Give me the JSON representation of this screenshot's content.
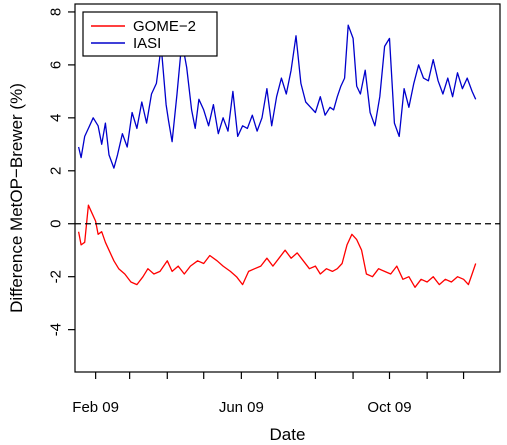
{
  "chart_data": {
    "type": "line",
    "xlabel": "Date",
    "ylabel": "Difference MetOP−Brewer (%)",
    "xlim": [
      "2009-01-15",
      "2009-12-31"
    ],
    "ylim": [
      -5.6,
      8.3
    ],
    "y_ticks": [
      -4,
      -2,
      0,
      2,
      4,
      6,
      8
    ],
    "y_tick_labels": [
      "-4",
      "-2",
      "0",
      "2",
      "4",
      "6",
      "8"
    ],
    "x_ticks": [
      "2009-01-01",
      "2009-02-01",
      "2009-03-01",
      "2009-04-01",
      "2009-05-01",
      "2009-06-01",
      "2009-07-01",
      "2009-08-01",
      "2009-09-01",
      "2009-10-01",
      "2009-11-01",
      "2009-12-01"
    ],
    "x_tick_labels": [
      {
        "date": "2009-02-01",
        "label": "Feb 09"
      },
      {
        "date": "2009-06-01",
        "label": "Jun 09"
      },
      {
        "date": "2009-10-01",
        "label": "Oct 09"
      }
    ],
    "reference_line": {
      "y": 0,
      "style": "dashed",
      "color": "#000000"
    },
    "legend": {
      "position": "top-left"
    },
    "grid": false,
    "series": [
      {
        "name": "GOME−2",
        "color": "#ff0000",
        "x": [
          "2009-01-18",
          "2009-01-20",
          "2009-01-23",
          "2009-01-26",
          "2009-01-29",
          "2009-02-01",
          "2009-02-03",
          "2009-02-06",
          "2009-02-09",
          "2009-02-12",
          "2009-02-16",
          "2009-02-20",
          "2009-02-25",
          "2009-03-02",
          "2009-03-07",
          "2009-03-12",
          "2009-03-16",
          "2009-03-21",
          "2009-03-26",
          "2009-04-01",
          "2009-04-05",
          "2009-04-10",
          "2009-04-15",
          "2009-04-20",
          "2009-04-26",
          "2009-05-01",
          "2009-05-06",
          "2009-05-12",
          "2009-05-17",
          "2009-05-23",
          "2009-05-28",
          "2009-06-02",
          "2009-06-07",
          "2009-06-12",
          "2009-06-17",
          "2009-06-22",
          "2009-06-27",
          "2009-07-02",
          "2009-07-07",
          "2009-07-12",
          "2009-07-17",
          "2009-07-22",
          "2009-07-27",
          "2009-08-01",
          "2009-08-05",
          "2009-08-10",
          "2009-08-15",
          "2009-08-19",
          "2009-08-23",
          "2009-08-27",
          "2009-08-31",
          "2009-09-04",
          "2009-09-08",
          "2009-09-12",
          "2009-09-17",
          "2009-09-22",
          "2009-09-27",
          "2009-10-02",
          "2009-10-07",
          "2009-10-12",
          "2009-10-17",
          "2009-10-22",
          "2009-10-27",
          "2009-11-01",
          "2009-11-06",
          "2009-11-11",
          "2009-11-16",
          "2009-11-21",
          "2009-11-26",
          "2009-12-01",
          "2009-12-05",
          "2009-12-08",
          "2009-12-11"
        ],
        "y": [
          -0.3,
          -0.8,
          -0.7,
          0.7,
          0.4,
          0.1,
          -0.4,
          -0.3,
          -0.7,
          -1.0,
          -1.4,
          -1.7,
          -1.9,
          -2.2,
          -2.3,
          -2.0,
          -1.7,
          -1.9,
          -1.8,
          -1.4,
          -1.8,
          -1.6,
          -1.9,
          -1.6,
          -1.4,
          -1.5,
          -1.2,
          -1.4,
          -1.6,
          -1.8,
          -2.0,
          -2.3,
          -1.8,
          -1.7,
          -1.6,
          -1.3,
          -1.6,
          -1.3,
          -1.0,
          -1.3,
          -1.1,
          -1.4,
          -1.7,
          -1.6,
          -1.9,
          -1.7,
          -1.8,
          -1.7,
          -1.5,
          -0.8,
          -0.4,
          -0.6,
          -1.0,
          -1.9,
          -2.0,
          -1.7,
          -1.8,
          -1.9,
          -1.6,
          -2.1,
          -2.0,
          -2.4,
          -2.1,
          -2.2,
          -2.0,
          -2.3,
          -2.1,
          -2.2,
          -2.0,
          -2.1,
          -2.3,
          -1.9,
          -1.5
        ]
      },
      {
        "name": "IASI",
        "color": "#0000cc",
        "x": [
          "2009-01-18",
          "2009-01-20",
          "2009-01-23",
          "2009-01-26",
          "2009-01-30",
          "2009-02-03",
          "2009-02-06",
          "2009-02-09",
          "2009-02-12",
          "2009-02-16",
          "2009-02-19",
          "2009-02-23",
          "2009-02-27",
          "2009-03-03",
          "2009-03-07",
          "2009-03-11",
          "2009-03-15",
          "2009-03-19",
          "2009-03-23",
          "2009-03-27",
          "2009-03-31",
          "2009-04-02",
          "2009-04-05",
          "2009-04-09",
          "2009-04-13",
          "2009-04-17",
          "2009-04-21",
          "2009-04-24",
          "2009-04-27",
          "2009-05-01",
          "2009-05-05",
          "2009-05-09",
          "2009-05-13",
          "2009-05-17",
          "2009-05-21",
          "2009-05-25",
          "2009-05-29",
          "2009-06-02",
          "2009-06-06",
          "2009-06-10",
          "2009-06-14",
          "2009-06-18",
          "2009-06-22",
          "2009-06-26",
          "2009-06-30",
          "2009-07-04",
          "2009-07-08",
          "2009-07-12",
          "2009-07-16",
          "2009-07-20",
          "2009-07-24",
          "2009-07-28",
          "2009-08-01",
          "2009-08-05",
          "2009-08-09",
          "2009-08-13",
          "2009-08-16",
          "2009-08-19",
          "2009-08-22",
          "2009-08-25",
          "2009-08-28",
          "2009-09-01",
          "2009-09-04",
          "2009-09-07",
          "2009-09-11",
          "2009-09-15",
          "2009-09-19",
          "2009-09-23",
          "2009-09-27",
          "2009-10-01",
          "2009-10-05",
          "2009-10-09",
          "2009-10-13",
          "2009-10-17",
          "2009-10-21",
          "2009-10-25",
          "2009-10-29",
          "2009-11-02",
          "2009-11-06",
          "2009-11-10",
          "2009-11-14",
          "2009-11-18",
          "2009-11-22",
          "2009-11-26",
          "2009-11-30",
          "2009-12-04",
          "2009-12-08",
          "2009-12-11"
        ],
        "y": [
          2.9,
          2.5,
          3.3,
          3.6,
          4.0,
          3.7,
          3.0,
          3.8,
          2.6,
          2.1,
          2.6,
          3.4,
          2.9,
          4.2,
          3.6,
          4.6,
          3.8,
          4.9,
          5.3,
          6.7,
          4.5,
          3.9,
          3.1,
          4.9,
          6.9,
          5.9,
          4.3,
          3.6,
          4.7,
          4.3,
          3.7,
          4.5,
          3.4,
          4.0,
          3.5,
          5.0,
          3.3,
          3.7,
          3.6,
          4.1,
          3.5,
          4.0,
          5.1,
          3.7,
          4.8,
          5.5,
          4.9,
          5.8,
          7.1,
          5.3,
          4.6,
          4.4,
          4.2,
          4.8,
          4.1,
          4.4,
          4.3,
          4.8,
          5.2,
          5.5,
          7.5,
          7.0,
          5.2,
          4.9,
          5.8,
          4.2,
          3.7,
          4.8,
          6.7,
          7.0,
          3.8,
          3.3,
          5.1,
          4.4,
          5.3,
          6.0,
          5.5,
          5.4,
          6.2,
          5.4,
          4.9,
          5.5,
          4.8,
          5.7,
          5.1,
          5.5,
          5.0,
          4.7
        ]
      }
    ]
  }
}
